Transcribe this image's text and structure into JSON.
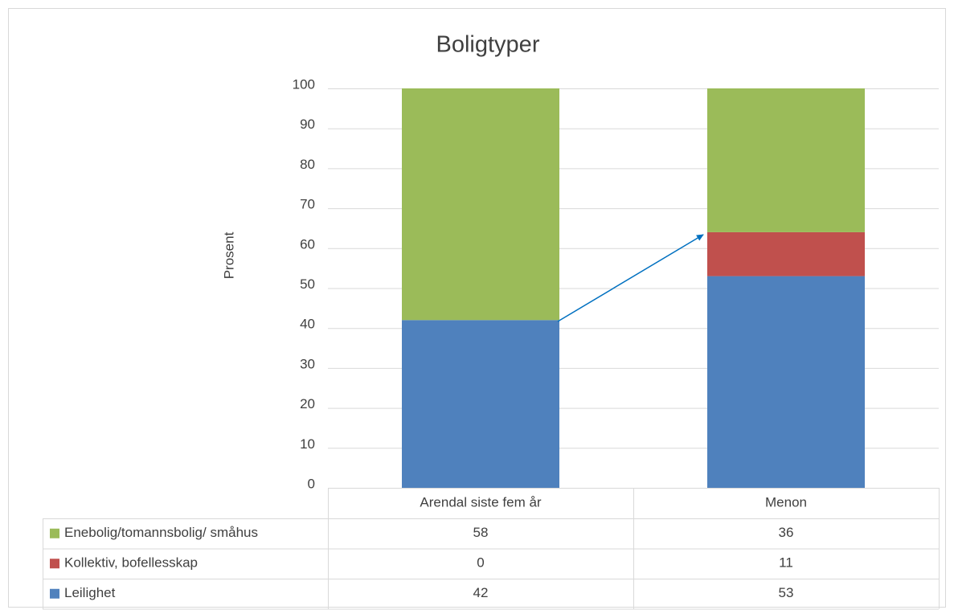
{
  "chart_data": {
    "type": "stacked_bar",
    "title": "Boligtyper",
    "y_label": "Prosent",
    "categories": [
      "Arendal siste fem år",
      "Menon"
    ],
    "series": [
      {
        "name": "Enebolig/tomannsbolig/ småhus",
        "color": "#9bbb59",
        "values": [
          58,
          36
        ]
      },
      {
        "name": "Kollektiv, bofellesskap",
        "color": "#c0504d",
        "values": [
          0,
          11
        ]
      },
      {
        "name": "Leilighet",
        "color": "#4f81bd",
        "values": [
          42,
          53
        ]
      }
    ],
    "ylim": [
      0,
      100
    ],
    "yticks": [
      0,
      10,
      20,
      30,
      40,
      50,
      60,
      70,
      80,
      90,
      100
    ],
    "grid": true
  }
}
